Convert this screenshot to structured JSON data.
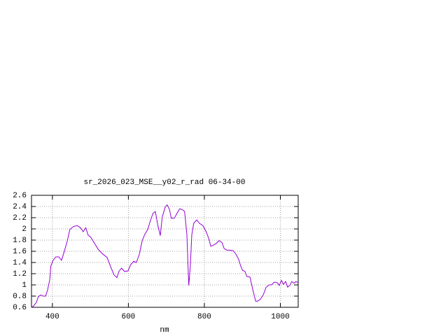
{
  "chart_data": {
    "type": "line",
    "title": "sr_2026_023_MSE__y02_r_rad 06-34-00",
    "x_label": "nm",
    "x": [
      345,
      350,
      358,
      363,
      369,
      376,
      382,
      387,
      393,
      396,
      402,
      409,
      417,
      424,
      431,
      439,
      446,
      455,
      465,
      474,
      481,
      488,
      494,
      501,
      511,
      520,
      531,
      544,
      553,
      562,
      570,
      575,
      582,
      590,
      599,
      606,
      614,
      621,
      629,
      636,
      643,
      651,
      658,
      665,
      671,
      678,
      684,
      689,
      697,
      702,
      708,
      713,
      721,
      728,
      735,
      743,
      748,
      754,
      758,
      759,
      763,
      767,
      772,
      780,
      787,
      796,
      804,
      811,
      817,
      824,
      831,
      839,
      846,
      852,
      859,
      868,
      876,
      883,
      890,
      896,
      901,
      907,
      912,
      920,
      927,
      935,
      940,
      947,
      955,
      962,
      970,
      977,
      984,
      992,
      997,
      1003,
      1008,
      1014,
      1019,
      1025,
      1030,
      1036,
      1041,
      1047
    ],
    "series": [
      {
        "color": "#9400d3",
        "values": [
          0.6,
          0.62,
          0.69,
          0.79,
          0.82,
          0.8,
          0.8,
          0.9,
          1.09,
          1.34,
          1.44,
          1.5,
          1.5,
          1.44,
          1.59,
          1.78,
          1.99,
          2.04,
          2.06,
          2.02,
          1.95,
          2.02,
          1.89,
          1.85,
          1.74,
          1.64,
          1.56,
          1.49,
          1.33,
          1.18,
          1.13,
          1.24,
          1.3,
          1.24,
          1.25,
          1.36,
          1.42,
          1.4,
          1.55,
          1.78,
          1.9,
          1.99,
          2.15,
          2.28,
          2.31,
          2.05,
          1.88,
          2.21,
          2.39,
          2.43,
          2.35,
          2.19,
          2.19,
          2.28,
          2.36,
          2.34,
          2.31,
          1.9,
          1.15,
          0.99,
          1.34,
          1.9,
          2.1,
          2.16,
          2.1,
          2.06,
          1.96,
          1.84,
          1.69,
          1.71,
          1.74,
          1.79,
          1.76,
          1.65,
          1.62,
          1.62,
          1.61,
          1.55,
          1.46,
          1.33,
          1.26,
          1.24,
          1.15,
          1.14,
          0.93,
          0.71,
          0.71,
          0.74,
          0.82,
          0.95,
          1.0,
          1.0,
          1.05,
          1.04,
          0.99,
          1.08,
          1.01,
          1.06,
          0.96,
          0.99,
          1.06,
          1.03,
          1.06,
          1.04
        ]
      }
    ],
    "xlim": [
      345,
      1047
    ],
    "xticks": [
      400,
      600,
      800,
      1000
    ],
    "ylim": [
      0.6,
      2.6
    ],
    "yticks": [
      0.6,
      0.8,
      1,
      1.2,
      1.4,
      1.6,
      1.8,
      2,
      2.2,
      2.4,
      2.6
    ],
    "grid": true
  }
}
